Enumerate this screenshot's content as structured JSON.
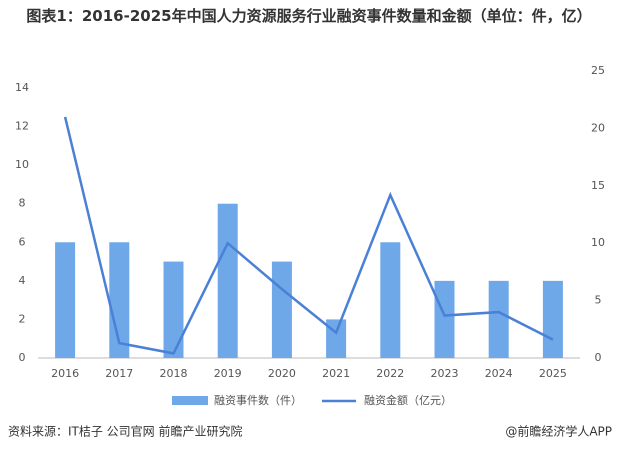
{
  "chart_data": {
    "type": "bar",
    "title": "图表1：2016-2025年中国人力资源服务行业融资事件数量和金额（单位：件，亿）",
    "categories": [
      "2016",
      "2017",
      "2018",
      "2019",
      "2020",
      "2021",
      "2022",
      "2023",
      "2024",
      "2025"
    ],
    "series": [
      {
        "name": "融资事件数（件）",
        "type": "bar",
        "color": "#6fa8e8",
        "values": [
          6,
          6,
          5,
          8,
          5,
          2,
          6,
          4,
          4,
          4
        ]
      },
      {
        "name": "融资金额（亿元）",
        "type": "line",
        "axis": "y2",
        "color": "#4a80d6",
        "values": [
          21,
          1.3,
          0.4,
          10,
          6,
          2.2,
          14.2,
          3.7,
          4,
          1.6
        ]
      }
    ],
    "ylim": [
      0,
      14
    ],
    "yticks": [
      0,
      2,
      4,
      6,
      8,
      10,
      12,
      14
    ],
    "y2lim": [
      0,
      25
    ],
    "y2ticks": [
      0,
      5,
      10,
      15,
      20,
      25
    ],
    "source": "资料来源：IT桔子 公司官网 前瞻产业研究院",
    "credit": "@前瞻经济学人APP"
  }
}
